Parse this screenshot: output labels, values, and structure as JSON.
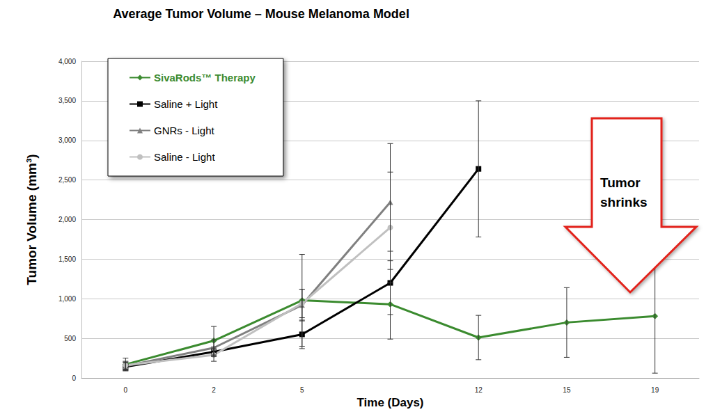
{
  "chart_data": {
    "type": "line",
    "title": "Average Tumor Volume – Mouse Melanoma Model",
    "x_label": "Time (Days)",
    "y_label": "Tumor Volume (mm³)",
    "categories": [
      "0",
      "2",
      "5",
      null,
      "12",
      "15",
      "19"
    ],
    "ylim": [
      0,
      4000
    ],
    "yticks": [
      0,
      500,
      1000,
      1500,
      2000,
      2500,
      3000,
      3500,
      4000
    ],
    "grid": true,
    "legend": "upper left",
    "annotation": "Tumor shrinks",
    "series": [
      {
        "name": "SivaRods™ Therapy",
        "color": "#3b8b2f",
        "marker": "diamond",
        "values": [
          170,
          470,
          980,
          930,
          510,
          700,
          780
        ],
        "errors": [
          80,
          180,
          580,
          440,
          280,
          440,
          720
        ]
      },
      {
        "name": "Saline + Light",
        "color": "#000000",
        "marker": "square",
        "values": [
          140,
          330,
          550,
          1200,
          2640,
          null,
          null
        ],
        "errors": [
          50,
          60,
          180,
          400,
          860,
          null,
          null
        ]
      },
      {
        "name": "GNRs - Light",
        "color": "#808080",
        "marker": "triangle",
        "values": [
          150,
          380,
          920,
          2220,
          null,
          null,
          null
        ],
        "errors": [
          50,
          100,
          200,
          740,
          null,
          null,
          null
        ]
      },
      {
        "name": "Saline - Light",
        "color": "#c0c0c0",
        "marker": "circle",
        "values": [
          160,
          290,
          940,
          1900,
          null,
          null,
          null
        ],
        "errors": [
          50,
          80,
          180,
          700,
          null,
          null,
          null
        ]
      }
    ]
  }
}
